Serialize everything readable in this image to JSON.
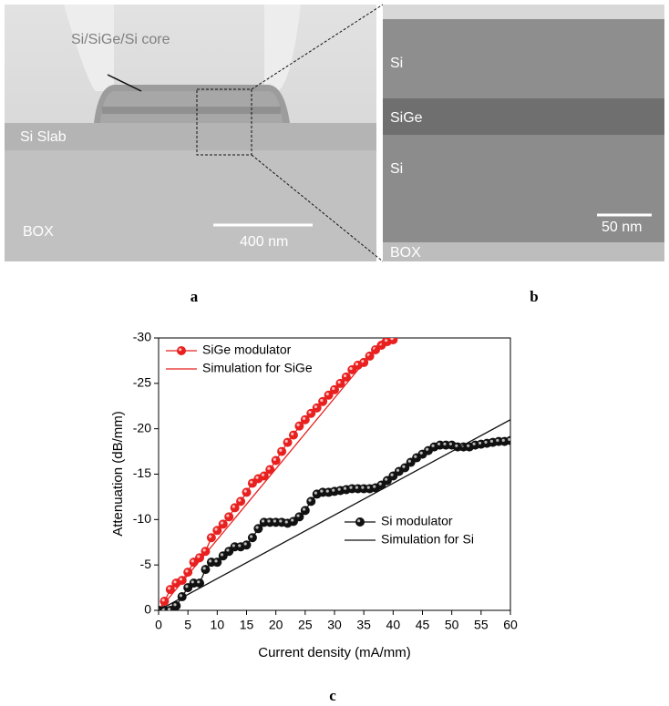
{
  "panels": {
    "a": {
      "label": "a",
      "core": "Si/SiGe/Si core",
      "slab": "Si Slab",
      "box": "BOX",
      "scale": "400 nm"
    },
    "b": {
      "label": "b",
      "top": "Si",
      "middle": "SiGe",
      "bottom": "Si",
      "scale": "50 nm",
      "box": "BOX"
    },
    "c": {
      "label": "c"
    }
  },
  "chart_data": {
    "type": "line",
    "x_label": "Current density (mA/mm)",
    "y_label": "Attenuation (dB/mm)",
    "xlim": [
      0,
      60
    ],
    "xticks": [
      0,
      5,
      10,
      15,
      20,
      25,
      30,
      35,
      40,
      45,
      50,
      55,
      60
    ],
    "ylim": [
      0,
      -30
    ],
    "yticks": [
      0,
      -5,
      -10,
      -15,
      -20,
      -25,
      -30
    ],
    "series": [
      {
        "name": "SiGe modulator",
        "color": "#e8201f",
        "marker": true,
        "legend": "upper left",
        "x": [
          0,
          1,
          2,
          3,
          4,
          5,
          6,
          7,
          8,
          9,
          10,
          11,
          12,
          13,
          14,
          15,
          16,
          17,
          18,
          19,
          20,
          21,
          22,
          23,
          24,
          25,
          26,
          27,
          28,
          29,
          30,
          31,
          32,
          33,
          34,
          35,
          36,
          37,
          38,
          39,
          40
        ],
        "values": [
          0,
          -1,
          -2.3,
          -3,
          -3.3,
          -4.2,
          -5.3,
          -5.8,
          -6.5,
          -8,
          -8.8,
          -9.5,
          -10.3,
          -11.3,
          -12,
          -13,
          -14,
          -14.5,
          -14.8,
          -15.5,
          -16.5,
          -17.5,
          -18.5,
          -19.3,
          -20.3,
          -21,
          -21.7,
          -22.3,
          -23,
          -23.7,
          -24.3,
          -25,
          -25.7,
          -26.5,
          -27,
          -27.3,
          -28,
          -28.7,
          -29.2,
          -29.6,
          -29.8
        ]
      },
      {
        "name": "Simulation for SiGe",
        "color": "#e8201f",
        "marker": false,
        "legend": "upper left",
        "x": [
          0,
          38.5
        ],
        "values": [
          0,
          -30
        ]
      },
      {
        "name": "Si modulator",
        "color": "#111111",
        "marker": true,
        "legend": "center right",
        "x": [
          0,
          1,
          2,
          3,
          4,
          5,
          6,
          7,
          8,
          9,
          10,
          11,
          12,
          13,
          14,
          15,
          16,
          17,
          18,
          19,
          20,
          21,
          22,
          23,
          24,
          25,
          26,
          27,
          28,
          29,
          30,
          31,
          32,
          33,
          34,
          35,
          36,
          37,
          38,
          39,
          40,
          41,
          42,
          43,
          44,
          45,
          46,
          47,
          48,
          49,
          50,
          51,
          52,
          53,
          54,
          55,
          56,
          57,
          58,
          59,
          60
        ],
        "values": [
          0,
          0,
          0,
          -0.5,
          -1.5,
          -2.5,
          -3,
          -3,
          -4.5,
          -5.3,
          -5.3,
          -6,
          -6.5,
          -7,
          -7,
          -7.2,
          -8,
          -9,
          -9.7,
          -9.7,
          -9.7,
          -9.7,
          -9.6,
          -9.8,
          -10.3,
          -11,
          -12,
          -12.8,
          -13,
          -13,
          -13.1,
          -13.2,
          -13.3,
          -13.4,
          -13.4,
          -13.4,
          -13.4,
          -13.5,
          -13.8,
          -14.3,
          -14.8,
          -15.3,
          -15.7,
          -16.3,
          -16.8,
          -17.2,
          -17.6,
          -18,
          -18.2,
          -18.2,
          -18.2,
          -18,
          -18,
          -18,
          -18.2,
          -18.3,
          -18.4,
          -18.5,
          -18.6,
          -18.6,
          -18.7
        ]
      },
      {
        "name": "Simulation for Si",
        "color": "#111111",
        "marker": false,
        "legend": "center right",
        "x": [
          0,
          60
        ],
        "values": [
          0,
          -21
        ]
      }
    ]
  }
}
